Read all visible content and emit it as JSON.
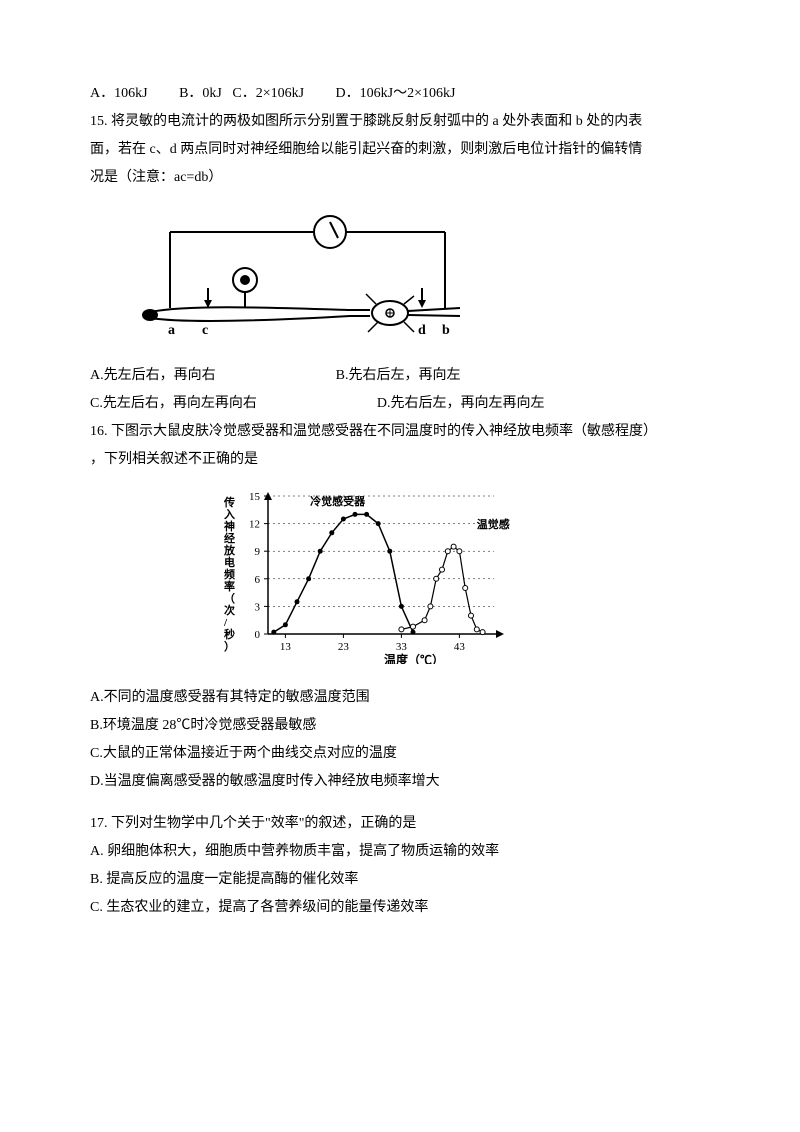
{
  "q14": {
    "optA": "A．106kJ",
    "optB": "B．0kJ",
    "optC": "C．2×106kJ",
    "optD": "D．106kJ～2×106kJ"
  },
  "q15": {
    "stem1": "15.   将灵敏的电流计的两极如图所示分别置于膝跳反射反射弧中的 a 处外表面和 b 处的内表",
    "stem2": "面，若在 c、d 两点同时对神经细胞给以能引起兴奋的刺激，则刺激后电位计指针的偏转情",
    "stem3": "况是（注意：ac=db）",
    "labels": {
      "a": "a",
      "c": "c",
      "d": "d",
      "b": "b"
    },
    "optA": "A.先左后右，再向右",
    "optB": "B.先右后左，再向左",
    "optC": "C.先左后右，再向左再向右",
    "optD": "D.先右后左，再向左再向左"
  },
  "q16": {
    "stem1": "16.  下图示大鼠皮肤冷觉感受器和温觉感受器在不同温度时的传入神经放电频率（敏感程度）",
    "stem2": "，下列相关叙述不正确的是",
    "chart": {
      "ylabel": "传入神经放电频率（次/秒）",
      "xlabel": "温度（℃）",
      "yticks": [
        0,
        3,
        6,
        9,
        12,
        15
      ],
      "xticks": [
        13,
        23,
        33,
        43
      ],
      "series1_label": "冷觉感受器",
      "series2_label": "温觉感受器",
      "series1": [
        [
          11,
          0.2
        ],
        [
          13,
          1
        ],
        [
          15,
          3.5
        ],
        [
          17,
          6
        ],
        [
          19,
          9
        ],
        [
          21,
          11
        ],
        [
          23,
          12.5
        ],
        [
          25,
          13
        ],
        [
          27,
          13
        ],
        [
          29,
          12
        ],
        [
          31,
          9
        ],
        [
          33,
          3
        ],
        [
          35,
          0.2
        ]
      ],
      "series2": [
        [
          33,
          0.5
        ],
        [
          35,
          0.8
        ],
        [
          37,
          1.5
        ],
        [
          38,
          3
        ],
        [
          39,
          6
        ],
        [
          40,
          7
        ],
        [
          41,
          9
        ],
        [
          42,
          9.5
        ],
        [
          43,
          9
        ],
        [
          44,
          5
        ],
        [
          45,
          2
        ],
        [
          46,
          0.5
        ],
        [
          47,
          0.2
        ]
      ],
      "colors": {
        "axis": "#000",
        "series1": "#000",
        "series2": "#000",
        "grid": "#000",
        "bg": "#fff"
      },
      "xrange": [
        10,
        50
      ],
      "yrange": [
        0,
        15
      ]
    },
    "optA": "A.不同的温度感受器有其特定的敏感温度范围",
    "optB": "B.环境温度 28℃时冷觉感受器最敏感",
    "optC": "C.大鼠的正常体温接近于两个曲线交点对应的温度",
    "optD": "D.当温度偏离感受器的敏感温度时传入神经放电频率增大"
  },
  "q17": {
    "stem": "17. 下列对生物学中几个关于\"效率\"的叙述，正确的是",
    "optA": "A. 卵细胞体积大，细胞质中营养物质丰富，提高了物质运输的效率",
    "optB": "B. 提高反应的温度一定能提高酶的催化效率",
    "optC": "C. 生态农业的建立，提高了各营养级间的能量传递效率"
  }
}
